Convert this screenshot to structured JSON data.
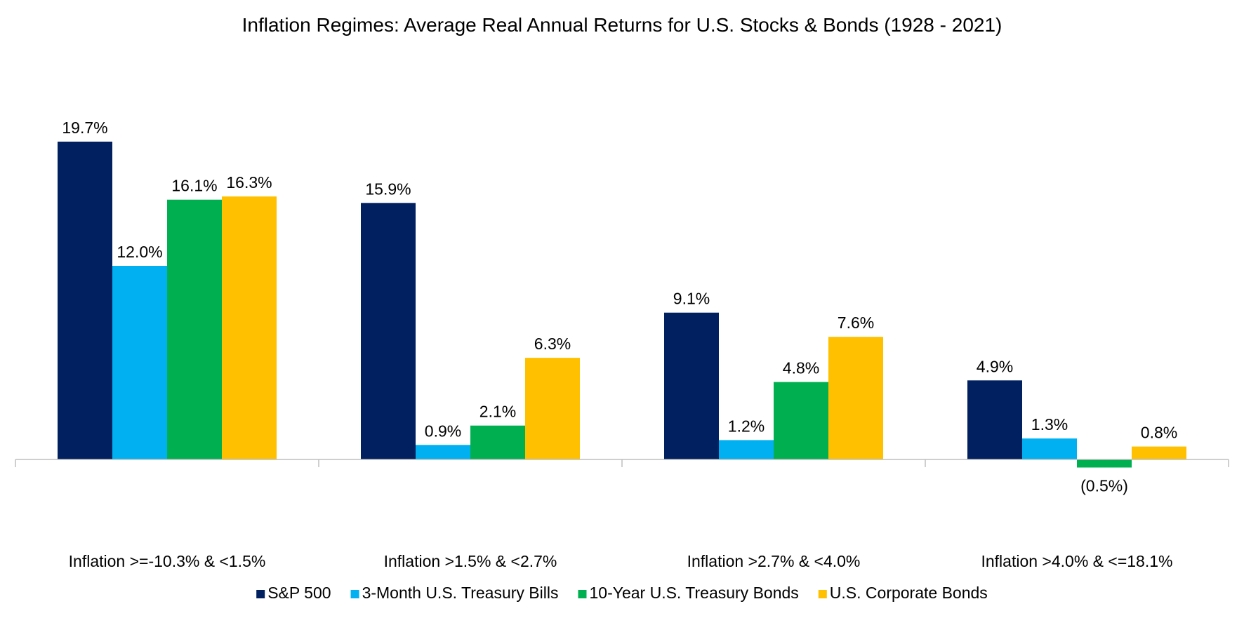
{
  "chart_data": {
    "type": "bar",
    "title": "Inflation Regimes: Average Real Annual Returns for U.S. Stocks & Bonds (1928 - 2021)",
    "xlabel": "",
    "ylabel": "",
    "categories": [
      "Inflation >=-10.3% & <1.5%",
      "Inflation >1.5% & <2.7%",
      "Inflation >2.7% & <4.0%",
      "Inflation >4.0% & <=18.1%"
    ],
    "series": [
      {
        "name": "S&P 500",
        "color": "#002060",
        "values": [
          19.7,
          15.9,
          9.1,
          4.9
        ],
        "labels": [
          "19.7%",
          "15.9%",
          "9.1%",
          "4.9%"
        ]
      },
      {
        "name": "3-Month U.S. Treasury Bills",
        "color": "#00B0F0",
        "values": [
          12.0,
          0.9,
          1.2,
          1.3
        ],
        "labels": [
          "12.0%",
          "0.9%",
          "1.2%",
          "1.3%"
        ]
      },
      {
        "name": "10-Year U.S. Treasury Bonds",
        "color": "#00B050",
        "values": [
          16.1,
          2.1,
          4.8,
          -0.5
        ],
        "labels": [
          "16.1%",
          "2.1%",
          "4.8%",
          "(0.5%)"
        ]
      },
      {
        "name": "U.S. Corporate Bonds",
        "color": "#FFC000",
        "values": [
          16.3,
          6.3,
          7.6,
          0.8
        ],
        "labels": [
          "16.3%",
          "6.3%",
          "7.6%",
          "0.8%"
        ]
      }
    ],
    "ylim": [
      -3,
      22
    ],
    "grid": false,
    "legend": "bottom"
  }
}
